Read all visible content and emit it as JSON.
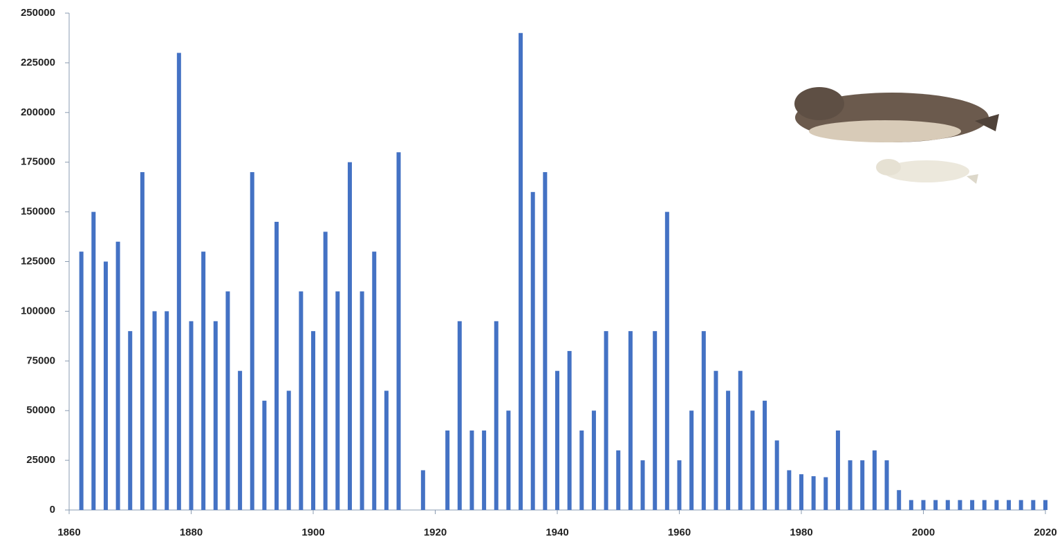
{
  "chart_data": {
    "type": "bar",
    "color": "#4472c4",
    "x": [
      1862,
      1864,
      1866,
      1868,
      1870,
      1872,
      1874,
      1876,
      1878,
      1880,
      1882,
      1884,
      1886,
      1888,
      1890,
      1892,
      1894,
      1896,
      1898,
      1900,
      1902,
      1904,
      1906,
      1908,
      1910,
      1912,
      1914,
      1916,
      1918,
      1920,
      1922,
      1924,
      1926,
      1928,
      1930,
      1932,
      1934,
      1936,
      1938,
      1940,
      1942,
      1944,
      1946,
      1948,
      1950,
      1952,
      1954,
      1956,
      1958,
      1960,
      1962,
      1964,
      1966,
      1968,
      1970,
      1972,
      1974,
      1976,
      1978,
      1980,
      1982,
      1984,
      1986,
      1988,
      1990,
      1992,
      1994,
      1996,
      1998,
      2000,
      2002,
      2004,
      2006,
      2008,
      2010,
      2012,
      2014,
      2016,
      2018,
      2020
    ],
    "values": [
      130000,
      150000,
      125000,
      135000,
      90000,
      170000,
      100000,
      100000,
      230000,
      95000,
      130000,
      95000,
      110000,
      70000,
      170000,
      55000,
      145000,
      60000,
      110000,
      90000,
      140000,
      110000,
      175000,
      110000,
      130000,
      60000,
      180000,
      null,
      20000,
      null,
      40000,
      95000,
      40000,
      40000,
      95000,
      50000,
      240000,
      160000,
      170000,
      70000,
      80000,
      40000,
      50000,
      90000,
      30000,
      90000,
      25000,
      90000,
      150000,
      25000,
      50000,
      90000,
      70000,
      60000,
      70000,
      50000,
      55000,
      35000,
      20000,
      18000,
      17000,
      16500,
      40000,
      25000,
      25000,
      30000,
      25000,
      10000,
      5000,
      5000,
      5000,
      5000,
      5000,
      5000,
      5000,
      5000,
      5000,
      5000,
      5000,
      5000
    ],
    "xlim": [
      1860,
      2020
    ],
    "xticks": [
      1860,
      1880,
      1900,
      1920,
      1940,
      1960,
      1980,
      2000,
      2020
    ],
    "ylim": [
      0,
      250000
    ],
    "yticks": [
      0,
      25000,
      50000,
      75000,
      100000,
      125000,
      150000,
      175000,
      200000,
      225000,
      250000
    ]
  }
}
